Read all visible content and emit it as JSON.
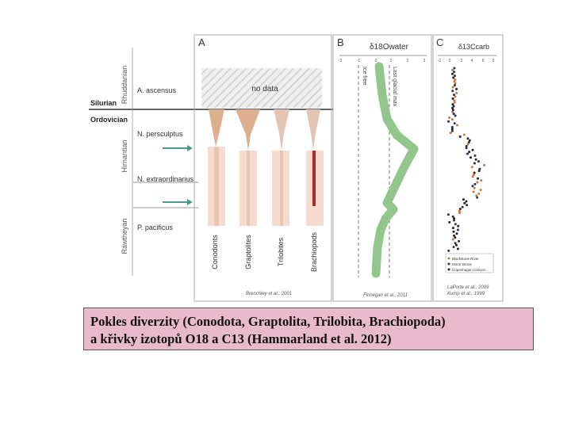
{
  "panels": {
    "a": "A",
    "b": "B",
    "c": "C"
  },
  "stratigraphy": {
    "silurian": "Silurian",
    "ordovician": "Ordovician",
    "rhuddanian": "Rhuddanian",
    "hirnantian": "Hirnantian",
    "rawtheyan": "Rawtheyan"
  },
  "zones": {
    "ascensus": "A. ascensus",
    "persculptus": "N. persculptus",
    "extraordinarius": "N. extraordinarius",
    "pacificus": "P. pacificus"
  },
  "panel_a": {
    "no_data": "no data",
    "groups": [
      "Conodonts",
      "Graptolites",
      "Trilobites",
      "Brachiopods"
    ],
    "credit": "Brenchley et al., 2001"
  },
  "panel_b": {
    "axis_title": "δ18Owater",
    "ticks": [
      "-3",
      "-1",
      "0",
      "1",
      "2",
      "3"
    ],
    "ice_free": "Ice free",
    "last_glacial": "Last glacial max",
    "credit": "Finnegan et al., 2011"
  },
  "panel_c": {
    "axis_title": "δ13Ccarb",
    "ticks": [
      "-2",
      "0",
      "2",
      "4",
      "6",
      "0"
    ],
    "legend": [
      "Blackstone River",
      "Mirror Brook",
      "Copenhagen Canyon"
    ],
    "credit_1": "LaPorte et al., 2009",
    "credit_2": "Kump et al., 1999"
  },
  "colors": {
    "green": "#92c68c",
    "conodont": "#dcb08e",
    "pale": "#f6dcd0",
    "brachiopod_red": "#b02a2a",
    "dot_orange": "#c8743a",
    "dot_navy": "#2a2d5e",
    "dot_black": "#222222",
    "caption_bg": "#e9b9cc"
  },
  "caption": {
    "line1": "Pokles diverzity (Conodota, Graptolita, Trilobita, Brachiopoda)",
    "line2": "a křivky izotopů O18 a C13 (Hammarland et al. 2012)"
  }
}
